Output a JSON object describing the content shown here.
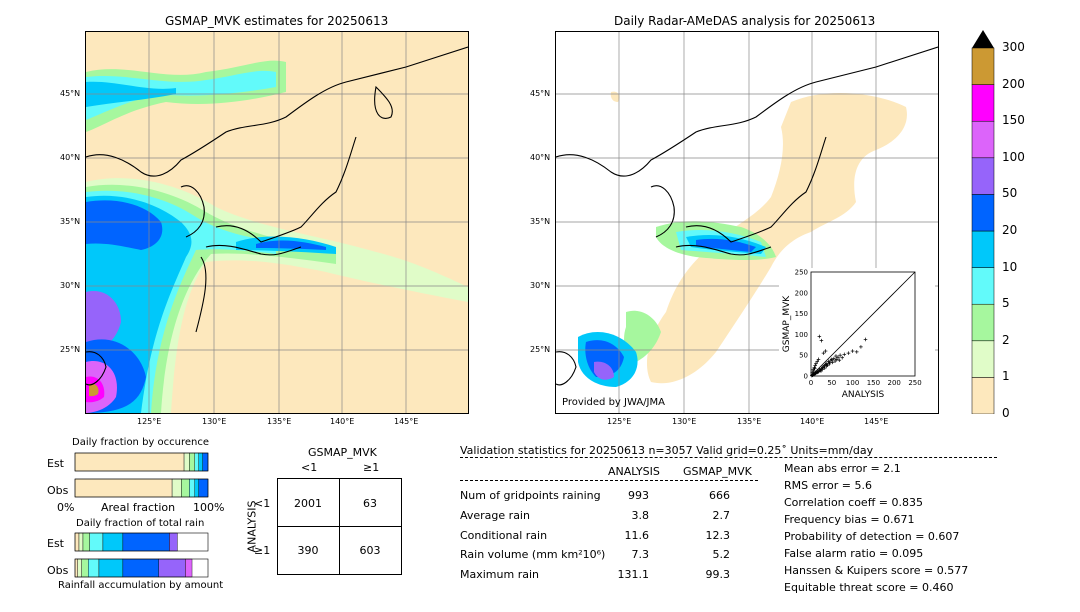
{
  "left_map": {
    "title": "GSMAP_MVK estimates for 20250613",
    "lat_labels": [
      "45°N",
      "40°N",
      "35°N",
      "30°N",
      "25°N"
    ],
    "lon_labels": [
      "125°E",
      "130°E",
      "135°E",
      "140°E",
      "145°E"
    ]
  },
  "right_map": {
    "title": "Daily Radar-AMeDAS analysis for 20250613",
    "lat_labels": [
      "45°N",
      "40°N",
      "35°N",
      "30°N",
      "25°N"
    ],
    "lon_labels": [
      "125°E",
      "130°E",
      "135°E",
      "140°E",
      "145°E"
    ],
    "credit": "Provided by JWA/JMA"
  },
  "colorbar": {
    "labels": [
      "0",
      "1",
      "2",
      "5",
      "10",
      "20",
      "50",
      "100",
      "150",
      "200",
      "300"
    ],
    "colors": [
      "#fde8bd",
      "#e0fcc8",
      "#a6f79e",
      "#62fafa",
      "#00c8fa",
      "#0064ff",
      "#9664fa",
      "#dc64fa",
      "#ff00ff",
      "#cc9933"
    ]
  },
  "chart_data": [
    {
      "type": "scatter",
      "title": "",
      "xlabel": "ANALYSIS",
      "ylabel": "GSMAP_MVK",
      "xlim": [
        0,
        250
      ],
      "ylim": [
        0,
        250
      ],
      "ticks": [
        "0",
        "50",
        "100",
        "150",
        "200",
        "250"
      ],
      "points": [
        [
          2,
          1
        ],
        [
          3,
          2
        ],
        [
          5,
          3
        ],
        [
          6,
          5
        ],
        [
          8,
          4
        ],
        [
          10,
          6
        ],
        [
          12,
          9
        ],
        [
          14,
          8
        ],
        [
          15,
          12
        ],
        [
          18,
          10
        ],
        [
          20,
          15
        ],
        [
          22,
          14
        ],
        [
          25,
          18
        ],
        [
          28,
          20
        ],
        [
          30,
          22
        ],
        [
          32,
          25
        ],
        [
          35,
          28
        ],
        [
          38,
          30
        ],
        [
          40,
          26
        ],
        [
          42,
          35
        ],
        [
          45,
          32
        ],
        [
          48,
          38
        ],
        [
          50,
          40
        ],
        [
          55,
          42
        ],
        [
          60,
          48
        ],
        [
          65,
          45
        ],
        [
          70,
          50
        ],
        [
          75,
          44
        ],
        [
          80,
          52
        ],
        [
          90,
          55
        ],
        [
          100,
          60
        ],
        [
          110,
          58
        ],
        [
          120,
          70
        ],
        [
          131,
          88
        ],
        [
          5,
          15
        ],
        [
          8,
          20
        ],
        [
          10,
          25
        ],
        [
          12,
          30
        ],
        [
          15,
          35
        ],
        [
          18,
          40
        ],
        [
          20,
          95
        ],
        [
          25,
          85
        ],
        [
          30,
          55
        ],
        [
          35,
          60
        ],
        [
          3,
          8
        ],
        [
          6,
          12
        ],
        [
          9,
          18
        ],
        [
          4,
          2
        ],
        [
          7,
          3
        ],
        [
          11,
          7
        ],
        [
          16,
          9
        ],
        [
          24,
          12
        ],
        [
          27,
          16
        ],
        [
          33,
          19
        ],
        [
          37,
          24
        ],
        [
          44,
          29
        ],
        [
          52,
          33
        ],
        [
          58,
          36
        ],
        [
          62,
          40
        ],
        [
          68,
          38
        ]
      ]
    },
    {
      "type": "bar",
      "title": "Daily fraction by occurence",
      "xlabel": "Areal fraction",
      "x_ticks": [
        "0%",
        "100%"
      ],
      "rows": [
        "Est",
        "Obs"
      ],
      "series": [
        {
          "row": "Est",
          "values": [
            0.82,
            0.04,
            0.04,
            0.03,
            0.03,
            0.04
          ]
        },
        {
          "row": "Obs",
          "values": [
            0.73,
            0.07,
            0.06,
            0.04,
            0.03,
            0.07
          ]
        }
      ]
    },
    {
      "type": "bar",
      "title": "Daily fraction of total rain",
      "xlabel": "Rainfall accumulation by amount",
      "rows": [
        "Est",
        "Obs"
      ],
      "series": [
        {
          "row": "Est",
          "values": [
            0.03,
            0.03,
            0.05,
            0.1,
            0.15,
            0.35,
            0.06
          ]
        },
        {
          "row": "Obs",
          "values": [
            0.02,
            0.03,
            0.05,
            0.08,
            0.18,
            0.27,
            0.2,
            0.05
          ]
        }
      ]
    },
    {
      "type": "table",
      "title": "GSMAP_MVK",
      "row_axis": "ANALYSIS",
      "col_headers": [
        "<1",
        "≥1"
      ],
      "row_headers": [
        "<1",
        "≥1"
      ],
      "cells": [
        [
          "2001",
          "63"
        ],
        [
          "390",
          "603"
        ]
      ]
    }
  ],
  "validation": {
    "header": "Validation statistics for 20250613  n=3057 Valid  grid=0.25˚ Units=mm/day",
    "col_analysis": "ANALYSIS",
    "col_gsmap": "GSMAP_MVK",
    "rows": [
      {
        "label": "Num of gridpoints raining",
        "analysis": "993",
        "gsmap": "666"
      },
      {
        "label": "Average rain",
        "analysis": "3.8",
        "gsmap": "2.7"
      },
      {
        "label": "Conditional rain",
        "analysis": "11.6",
        "gsmap": "12.3"
      },
      {
        "label": "Rain volume (mm km²10⁶)",
        "analysis": "7.3",
        "gsmap": "5.2"
      },
      {
        "label": "Maximum rain",
        "analysis": "131.1",
        "gsmap": "99.3"
      }
    ],
    "scores": [
      "Mean abs error =    2.1",
      "RMS error =    5.6",
      "Correlation coeff =  0.835",
      "Frequency bias =  0.671",
      "Probability of detection =  0.607",
      "False alarm ratio =  0.095",
      "Hanssen & Kuipers score =  0.577",
      "Equitable threat score =  0.460"
    ]
  }
}
